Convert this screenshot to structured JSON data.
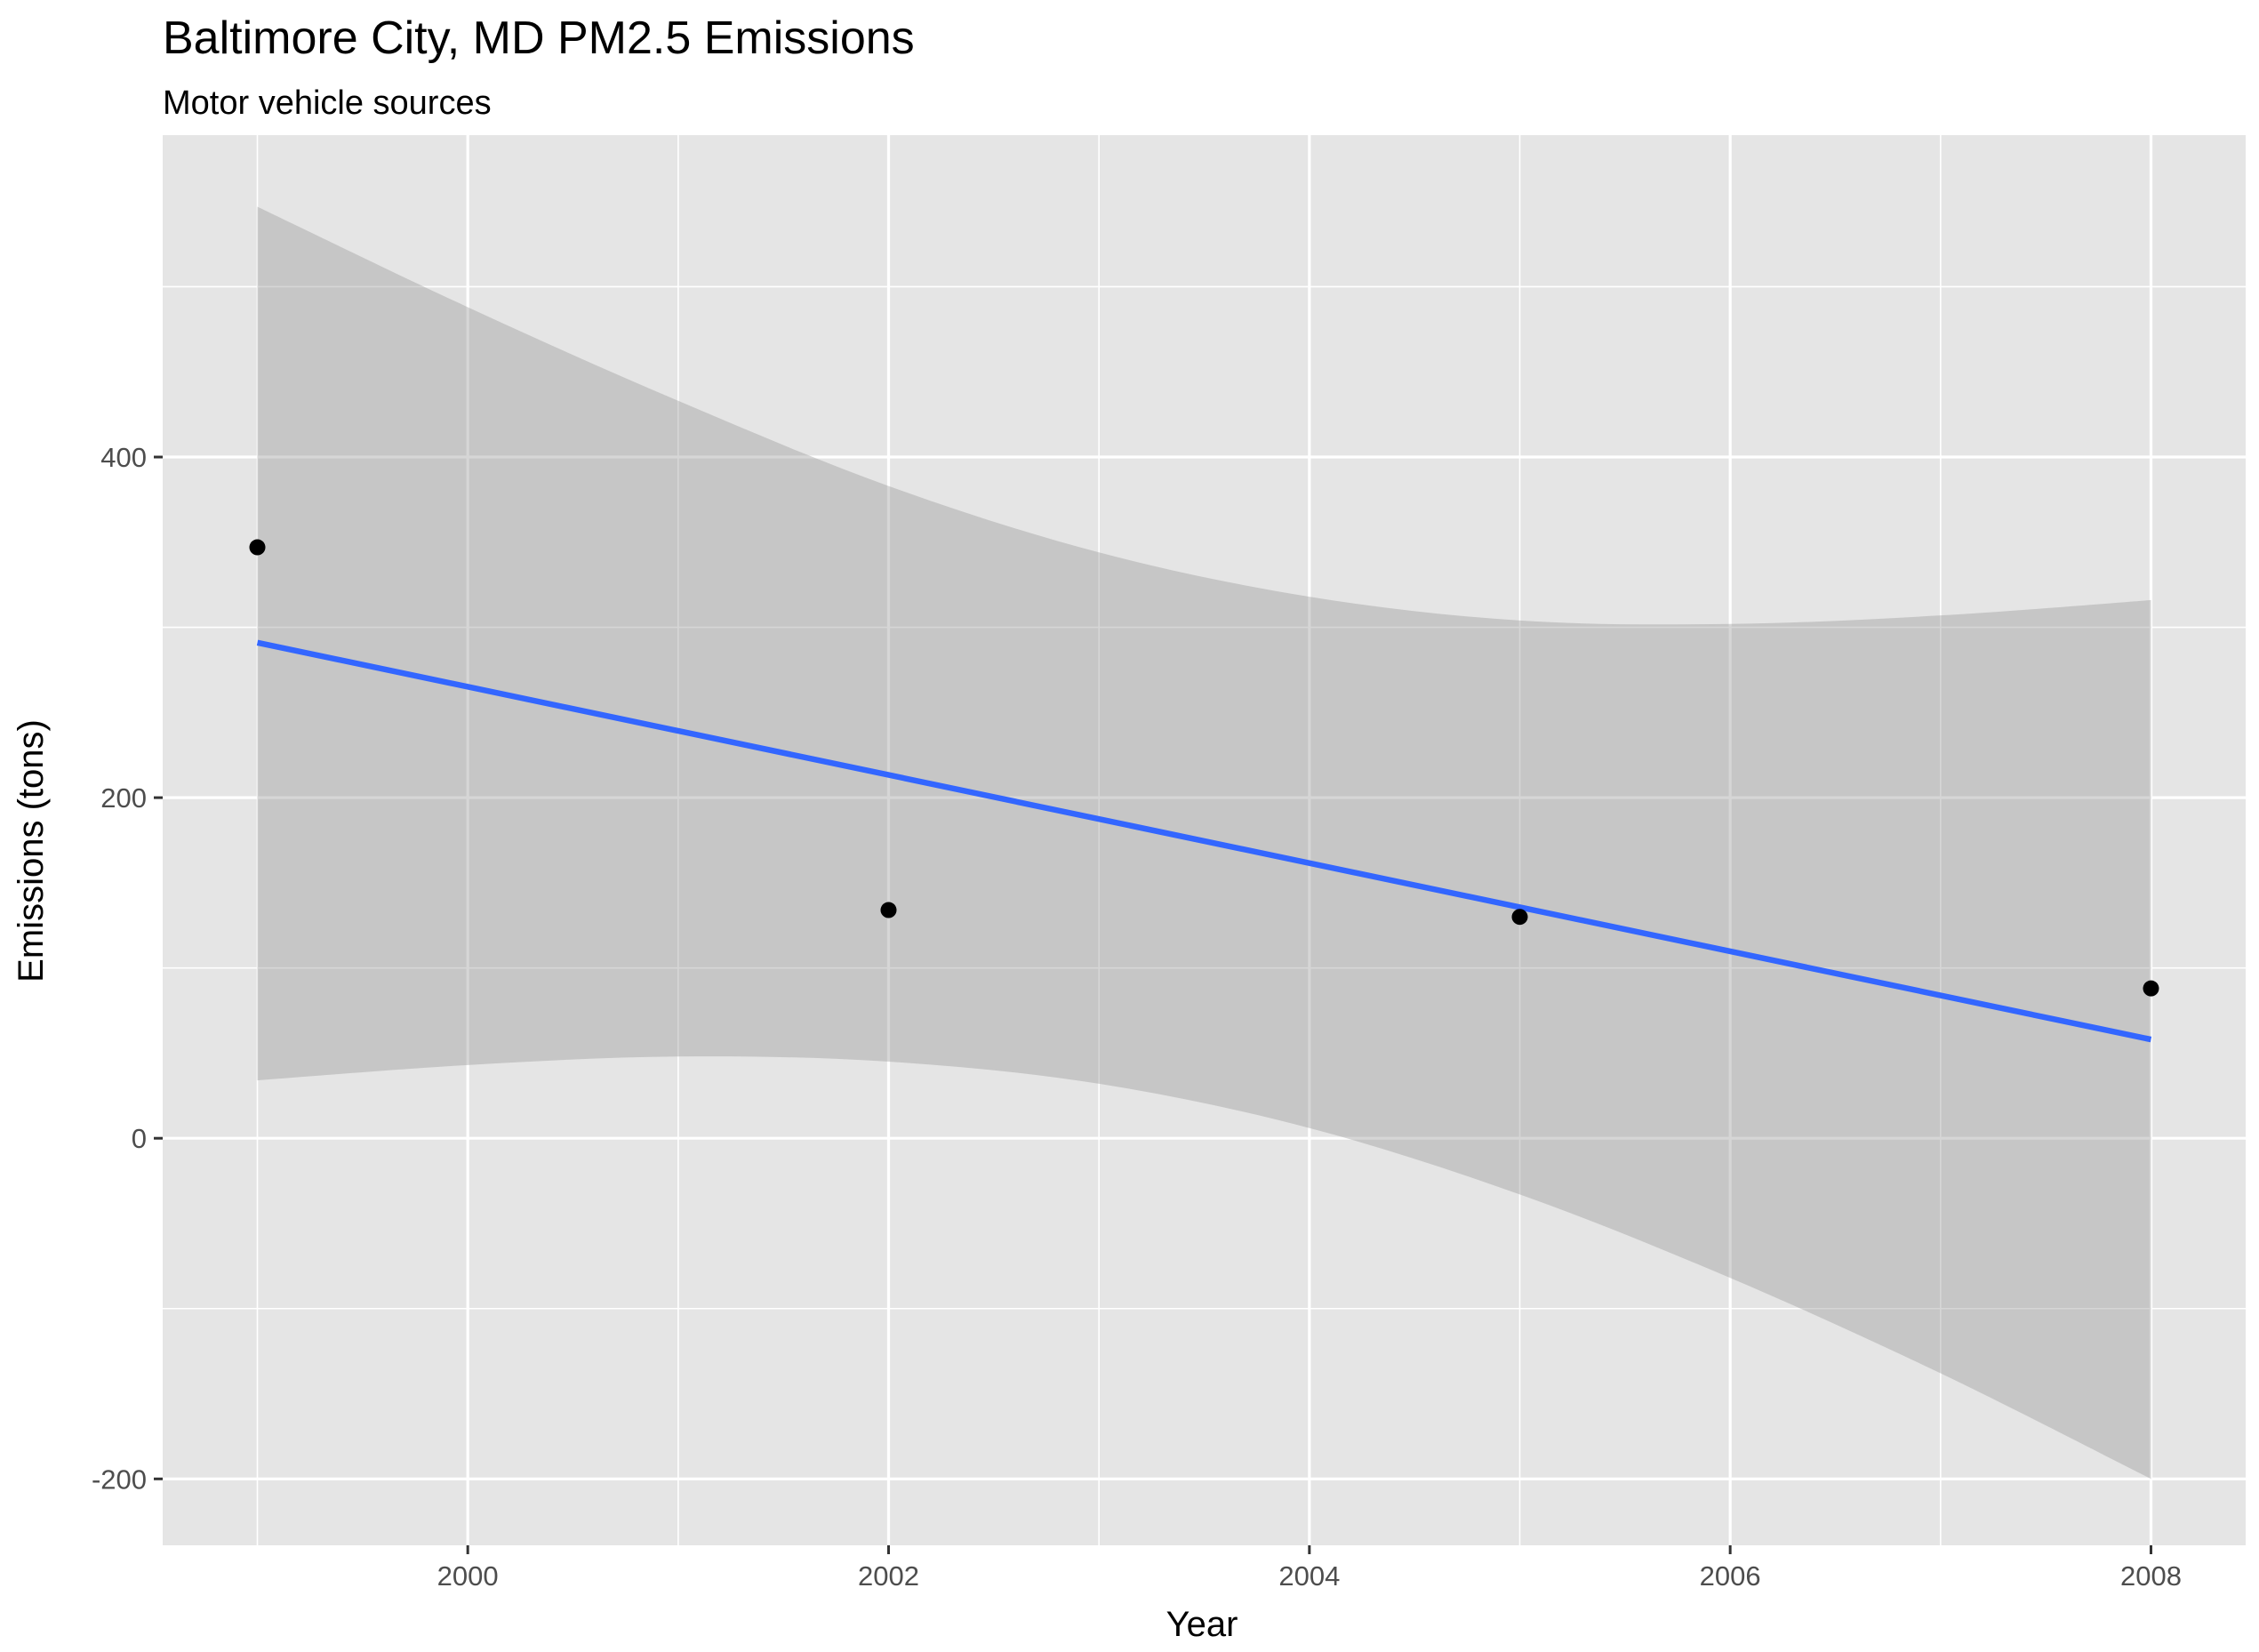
{
  "chart_data": {
    "type": "scatter",
    "title": "Baltimore City, MD PM2.5 Emissions",
    "subtitle": "Motor vehicle sources",
    "xlabel": "Year",
    "ylabel": "Emissions (tons)",
    "xlim": [
      1998.55,
      2008.45
    ],
    "ylim": [
      -239,
      589
    ],
    "x_ticks": [
      2000,
      2002,
      2004,
      2006,
      2008
    ],
    "x_tick_labels": [
      "2000",
      "2002",
      "2004",
      "2006",
      "2008"
    ],
    "y_ticks": [
      -200,
      0,
      200,
      400
    ],
    "y_tick_labels": [
      "-200",
      "0",
      "200",
      "400"
    ],
    "grid": true,
    "points": {
      "x": [
        1999,
        2002,
        2005,
        2008
      ],
      "y": [
        347,
        134,
        130,
        88
      ]
    },
    "trend_line": {
      "method": "linear regression",
      "x": [
        1999,
        2008
      ],
      "y": [
        291,
        58
      ]
    },
    "confidence_band": {
      "x": [
        1999,
        2000,
        2001,
        2002,
        2003,
        2004,
        2005,
        2006,
        2007,
        2008
      ],
      "upper": [
        547,
        488,
        433,
        383,
        344,
        318,
        304,
        302,
        307,
        316
      ],
      "lower": [
        34,
        43,
        48,
        45,
        32,
        6,
        -33,
        -82,
        -138,
        -200
      ]
    },
    "colors": {
      "panel_background": "#e5e5e5",
      "grid": "#ffffff",
      "band": "#999999",
      "line": "#3366ff",
      "points": "#000000"
    }
  }
}
